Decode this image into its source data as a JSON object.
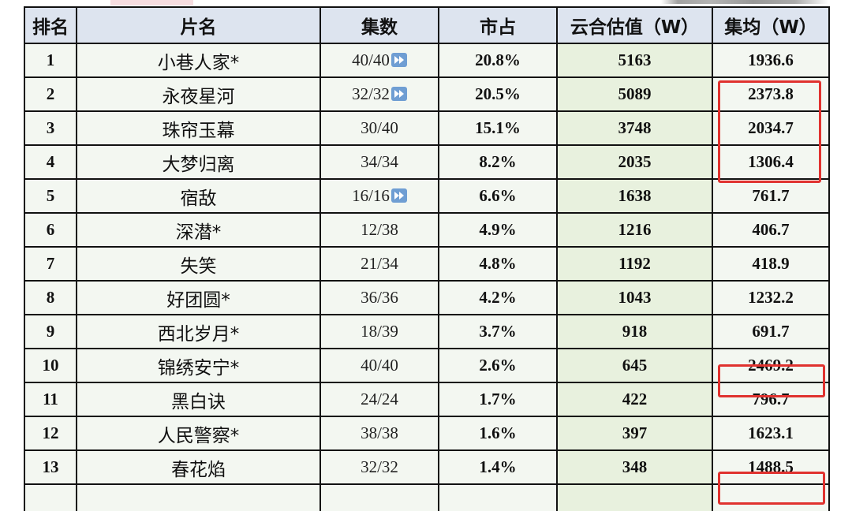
{
  "table": {
    "headers": {
      "rank": "排名",
      "title": "片名",
      "episodes": "集数",
      "share": "市占",
      "estimate": "云合估值（W）",
      "per_episode": "集均（W）"
    },
    "rows": [
      {
        "rank": "1",
        "title": "小巷人家*",
        "episodes": "40/40",
        "play_icon": true,
        "share": "20.8%",
        "estimate": "5163",
        "per_episode": "1936.6"
      },
      {
        "rank": "2",
        "title": "永夜星河",
        "episodes": "32/32",
        "play_icon": true,
        "share": "20.5%",
        "estimate": "5089",
        "per_episode": "2373.8"
      },
      {
        "rank": "3",
        "title": "珠帘玉幕",
        "episodes": "30/40",
        "play_icon": false,
        "share": "15.1%",
        "estimate": "3748",
        "per_episode": "2034.7"
      },
      {
        "rank": "4",
        "title": "大梦归离",
        "episodes": "34/34",
        "play_icon": false,
        "share": "8.2%",
        "estimate": "2035",
        "per_episode": "1306.4"
      },
      {
        "rank": "5",
        "title": "宿敌",
        "episodes": "16/16",
        "play_icon": true,
        "share": "6.6%",
        "estimate": "1638",
        "per_episode": "761.7"
      },
      {
        "rank": "6",
        "title": "深潜*",
        "episodes": "12/38",
        "play_icon": false,
        "share": "4.9%",
        "estimate": "1216",
        "per_episode": "406.7"
      },
      {
        "rank": "7",
        "title": "失笑",
        "episodes": "21/34",
        "play_icon": false,
        "share": "4.8%",
        "estimate": "1192",
        "per_episode": "418.9"
      },
      {
        "rank": "8",
        "title": "好团圆*",
        "episodes": "36/36",
        "play_icon": false,
        "share": "4.2%",
        "estimate": "1043",
        "per_episode": "1232.2"
      },
      {
        "rank": "9",
        "title": "西北岁月*",
        "episodes": "18/39",
        "play_icon": false,
        "share": "3.7%",
        "estimate": "918",
        "per_episode": "691.7"
      },
      {
        "rank": "10",
        "title": "锦绣安宁*",
        "episodes": "40/40",
        "play_icon": false,
        "share": "2.6%",
        "estimate": "645",
        "per_episode": "2469.2"
      },
      {
        "rank": "11",
        "title": "黑白诀",
        "episodes": "24/24",
        "play_icon": false,
        "share": "1.7%",
        "estimate": "422",
        "per_episode": "796.7"
      },
      {
        "rank": "12",
        "title": "人民警察*",
        "episodes": "38/38",
        "play_icon": false,
        "share": "1.6%",
        "estimate": "397",
        "per_episode": "1623.1"
      },
      {
        "rank": "13",
        "title": "春花焰",
        "episodes": "32/32",
        "play_icon": false,
        "share": "1.4%",
        "estimate": "348",
        "per_episode": "1488.5"
      }
    ]
  },
  "colors": {
    "header_bg": "#dde4ef",
    "estimate_bg": "#e8f1de",
    "highlight_border": "#e0322f",
    "play_icon": "#6f9ed3"
  },
  "icons": {
    "play": "fast-forward-icon"
  }
}
